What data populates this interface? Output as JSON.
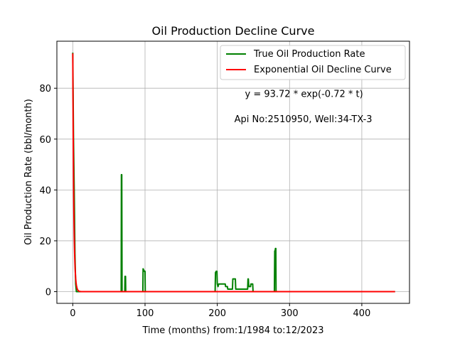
{
  "chart_data": {
    "type": "line",
    "title": "Oil Production Decline Curve",
    "xlabel": "Time (months) from:1/1984 to:12/2023",
    "ylabel": "Oil Production Rate (bbl/month)",
    "xlim": [
      -22,
      466
    ],
    "ylim": [
      -4.6,
      98.5
    ],
    "xticks": [
      0,
      100,
      200,
      300,
      400
    ],
    "yticks": [
      0,
      20,
      40,
      60,
      80
    ],
    "grid": true,
    "legend_position": "top-right",
    "annotations": [
      {
        "text": "y = 93.72 * exp(-0.72 * t)",
        "x": 320,
        "y": 78
      },
      {
        "text": "Api No:2510950, Well:34-TX-3",
        "x": 319,
        "y": 68
      }
    ],
    "series": [
      {
        "name": "True Oil Production Rate",
        "color": "#008000",
        "points": [
          [
            0,
            94
          ],
          [
            1,
            60
          ],
          [
            2,
            40
          ],
          [
            3,
            15
          ],
          [
            4,
            3
          ],
          [
            5,
            0
          ],
          [
            67,
            0
          ],
          [
            67.3,
            46
          ],
          [
            67.8,
            46
          ],
          [
            68.2,
            0
          ],
          [
            72,
            0
          ],
          [
            72.3,
            6
          ],
          [
            73,
            6
          ],
          [
            73.3,
            0
          ],
          [
            97,
            0
          ],
          [
            97.3,
            9
          ],
          [
            99,
            8
          ],
          [
            100,
            8
          ],
          [
            100.3,
            0
          ],
          [
            197,
            0
          ],
          [
            197.5,
            7.5
          ],
          [
            198.5,
            8
          ],
          [
            199.5,
            8
          ],
          [
            200,
            3
          ],
          [
            201,
            2
          ],
          [
            202,
            3
          ],
          [
            211,
            3
          ],
          [
            211.5,
            2
          ],
          [
            214,
            2
          ],
          [
            214.5,
            1
          ],
          [
            221,
            1
          ],
          [
            221.5,
            5
          ],
          [
            225,
            5
          ],
          [
            225.5,
            1
          ],
          [
            242,
            1
          ],
          [
            242.5,
            5
          ],
          [
            243,
            5
          ],
          [
            243.5,
            2
          ],
          [
            246,
            2
          ],
          [
            246.5,
            3
          ],
          [
            249,
            3
          ],
          [
            249.5,
            0
          ],
          [
            279,
            0
          ],
          [
            279.5,
            16
          ],
          [
            280,
            16
          ],
          [
            280.5,
            17
          ],
          [
            281,
            17
          ],
          [
            281.3,
            0
          ],
          [
            446,
            0
          ]
        ]
      },
      {
        "name": "Exponential Oil Decline Curve",
        "color": "#ff0000",
        "model": {
          "a": 93.72,
          "b": 0.72
        },
        "x_range": [
          0,
          446
        ]
      }
    ]
  }
}
